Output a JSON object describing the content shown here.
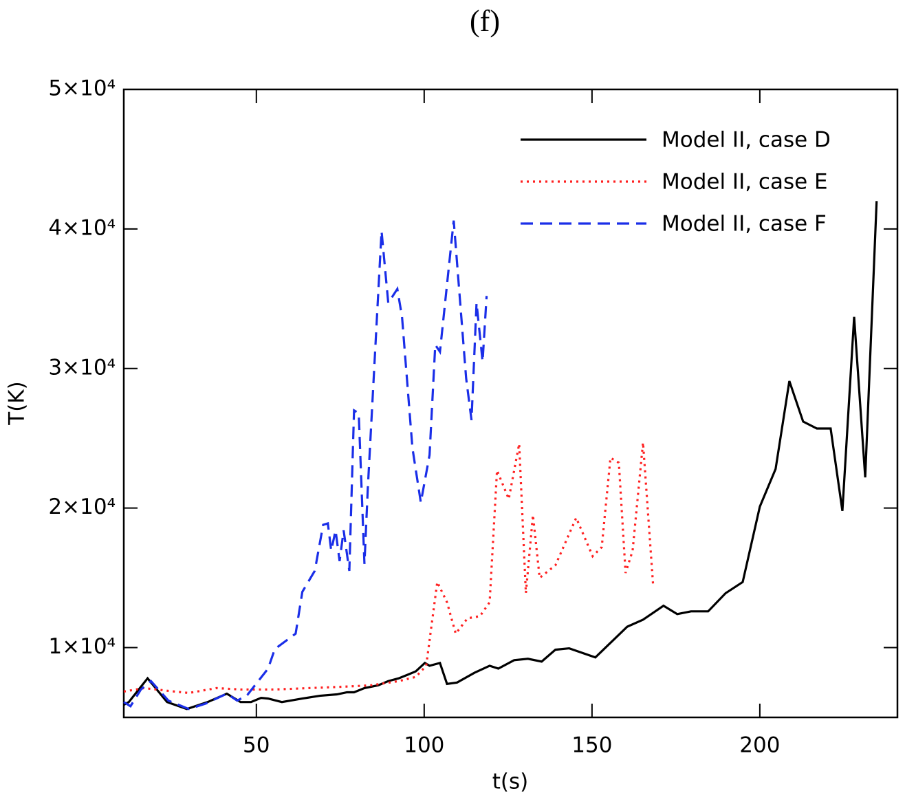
{
  "chart_data": {
    "type": "line",
    "title": "(f)",
    "xlabel": "t(s)",
    "ylabel": "T(K)",
    "xlim": [
      10.5,
      241
    ],
    "xticks": [
      50,
      100,
      150,
      200
    ],
    "ylim": [
      5000,
      50000
    ],
    "yticks": [
      {
        "value": 10000,
        "label": "1×10⁴"
      },
      {
        "value": 20000,
        "label": "2×10⁴"
      },
      {
        "value": 30000,
        "label": "3×10⁴"
      },
      {
        "value": 40000,
        "label": "4×10⁴"
      },
      {
        "value": 50000,
        "label": "5×10⁴"
      }
    ],
    "legend": "upper right",
    "series": [
      {
        "name": "Model II, case D",
        "color": "#000000",
        "dash": "solid",
        "x": [
          10.5,
          12,
          17.6,
          23.4,
          29.3,
          35.5,
          41.2,
          45.3,
          48.4,
          51.4,
          53.5,
          57.6,
          63.7,
          68.9,
          74,
          77,
          79.1,
          82.2,
          86.3,
          89.3,
          92.4,
          95.5,
          97.5,
          100.2,
          101.6,
          104.7,
          106.8,
          109.8,
          115,
          119.5,
          122.1,
          126.8,
          130.9,
          135,
          139.1,
          143.2,
          151,
          160.5,
          165.2,
          171.3,
          175.4,
          179.5,
          184.6,
          189.8,
          194.9,
          200,
          204.7,
          208.8,
          212.9,
          217,
          221.1,
          224.6,
          228.1,
          231.4,
          234.8
        ],
        "values": [
          5900,
          6100,
          7800,
          6100,
          5600,
          6100,
          6700,
          6100,
          6100,
          6400,
          6350,
          6100,
          6350,
          6550,
          6650,
          6800,
          6800,
          7100,
          7300,
          7600,
          7800,
          8100,
          8300,
          8900,
          8700,
          8900,
          7400,
          7500,
          8200,
          8700,
          8500,
          9100,
          9200,
          9000,
          9850,
          9950,
          9300,
          11500,
          12000,
          13000,
          12400,
          12600,
          12600,
          13900,
          14700,
          20100,
          22800,
          29100,
          26200,
          25700,
          25700,
          19800,
          33700,
          22200,
          42000
        ]
      },
      {
        "name": "Model II, case E",
        "color": "#ff2020",
        "dash": "dotted",
        "x": [
          10.5,
          16.6,
          23.8,
          29.9,
          38.1,
          45.3,
          55.5,
          65.8,
          76,
          84.2,
          92.4,
          97.5,
          100.6,
          103.9,
          106.8,
          109.4,
          112.9,
          116.6,
          119.5,
          121.7,
          125.2,
          128.3,
          130.3,
          132.4,
          134.4,
          139.1,
          145.3,
          150.2,
          152.9,
          155.5,
          158,
          160,
          162.1,
          165.2,
          168.2
        ],
        "values": [
          6850,
          7100,
          6900,
          6750,
          7100,
          7000,
          7000,
          7100,
          7200,
          7300,
          7600,
          7900,
          8700,
          14700,
          13250,
          11000,
          12100,
          12250,
          13250,
          22700,
          20650,
          24600,
          13900,
          19500,
          15000,
          15900,
          19300,
          16550,
          17200,
          23600,
          23250,
          15350,
          16950,
          24700,
          14500
        ]
      },
      {
        "name": "Model II, case F",
        "color": "#1a2ee8",
        "dash": "dashed",
        "x": [
          10.5,
          12.5,
          15.6,
          18.6,
          23.8,
          29.9,
          35,
          41.2,
          44.3,
          47.3,
          53.5,
          55.5,
          61.7,
          63.7,
          67.4,
          69.9,
          71.3,
          72.3,
          73.6,
          74.8,
          76,
          77.7,
          79.1,
          80.5,
          82.2,
          83.2,
          87.3,
          89.3,
          92,
          93.4,
          96.5,
          99,
          101.6,
          103.3,
          104.7,
          108.8,
          112.5,
          114.1,
          115.6,
          117.4,
          118.6
        ],
        "values": [
          6100,
          5800,
          7000,
          7600,
          6200,
          5600,
          6000,
          6700,
          6200,
          6600,
          8500,
          9900,
          11000,
          14000,
          15500,
          18800,
          18900,
          16950,
          18400,
          16200,
          18400,
          15500,
          27000,
          26800,
          16000,
          21400,
          39850,
          34700,
          35700,
          33700,
          24300,
          20400,
          23800,
          31700,
          31200,
          40600,
          29300,
          26300,
          34700,
          30500,
          35200
        ]
      }
    ]
  }
}
